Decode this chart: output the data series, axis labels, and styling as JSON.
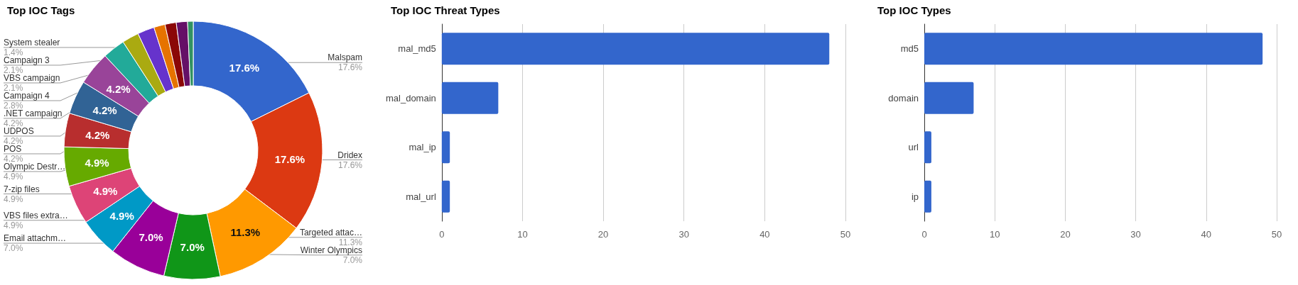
{
  "chart_data": [
    {
      "type": "donut",
      "title": "Top IOC Tags",
      "categories": [
        "Malspam",
        "Dridex",
        "Targeted attac…",
        "Winter Olympics",
        "Email attachm…",
        "VBS files extra…",
        "7-zip files",
        "Olympic Destr…",
        "POS",
        "UDPOS",
        ".NET campaign",
        "Campaign 4",
        "VBS campaign",
        "Campaign 3",
        null,
        null,
        "System stealer",
        null
      ],
      "values": [
        17.6,
        17.6,
        11.3,
        7.0,
        7.0,
        4.9,
        4.9,
        4.9,
        4.2,
        4.2,
        4.2,
        2.8,
        2.1,
        2.1,
        1.4,
        1.4,
        1.4,
        0.7
      ],
      "value_labels": [
        "17.6%",
        "17.6%",
        "11.3%",
        "7.0%",
        "7.0%",
        "4.9%",
        "4.9%",
        "4.9%",
        "4.2%",
        "4.2%",
        "4.2%",
        "2.8%",
        "2.1%",
        "2.1%",
        null,
        null,
        "1.4%",
        null
      ],
      "colors": [
        "#3366cc",
        "#dc3912",
        "#ff9900",
        "#109618",
        "#990099",
        "#0099c6",
        "#dd4477",
        "#66aa00",
        "#b82e2e",
        "#316395",
        "#994499",
        "#22aa99",
        "#aaaa11",
        "#6633cc",
        "#e67300",
        "#8b0707",
        "#651067",
        "#329262"
      ],
      "legend": false
    },
    {
      "type": "bar",
      "orientation": "horizontal",
      "title": "Top IOC Threat Types",
      "categories": [
        "mal_md5",
        "mal_domain",
        "mal_ip",
        "mal_url"
      ],
      "values": [
        48,
        7,
        1,
        1
      ],
      "color": "#3366cc",
      "xlim": [
        0,
        50
      ],
      "xticks": [
        0,
        10,
        20,
        30,
        40,
        50
      ],
      "grid": "x",
      "legend": false
    },
    {
      "type": "bar",
      "orientation": "horizontal",
      "title": "Top IOC Types",
      "categories": [
        "md5",
        "domain",
        "url",
        "ip"
      ],
      "values": [
        48,
        7,
        1,
        1
      ],
      "color": "#3366cc",
      "xlim": [
        0,
        50
      ],
      "xticks": [
        0,
        10,
        20,
        30,
        40,
        50
      ],
      "grid": "x",
      "legend": false
    }
  ]
}
